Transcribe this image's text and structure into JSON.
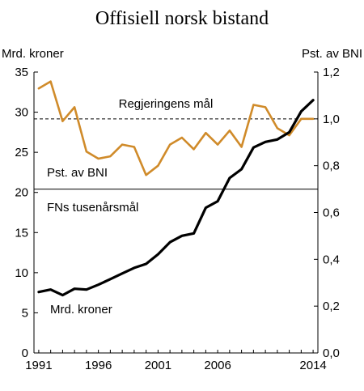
{
  "chart_data": {
    "type": "line",
    "title": "Offisiell norsk bistand",
    "left_axis_unit": "Mrd. kroner",
    "right_axis_unit": "Pst. av BNI",
    "x": [
      1991,
      1992,
      1993,
      1994,
      1995,
      1996,
      1997,
      1998,
      1999,
      2000,
      2001,
      2002,
      2003,
      2004,
      2005,
      2006,
      2007,
      2008,
      2009,
      2010,
      2011,
      2012,
      2013,
      2014
    ],
    "x_ticks": [
      "1991",
      "1996",
      "2001",
      "2006",
      "2014"
    ],
    "x_tick_values": [
      1991,
      1996,
      2001,
      2006,
      2014
    ],
    "xlim": [
      1990.6,
      2014.4
    ],
    "ylim_left": [
      0,
      35
    ],
    "y_ticks_left": [
      "0",
      "5",
      "10",
      "15",
      "20",
      "25",
      "30",
      "35"
    ],
    "y_tick_values_left": [
      0,
      5,
      10,
      15,
      20,
      25,
      30,
      35
    ],
    "ylim_right": [
      0,
      1.2
    ],
    "y_ticks_right": [
      "0,0",
      "0,2",
      "0,4",
      "0,6",
      "0,8",
      "1,0",
      "1,2"
    ],
    "y_tick_values_right": [
      0,
      0.2,
      0.4,
      0.6,
      0.8,
      1.0,
      1.2
    ],
    "series": [
      {
        "name": "Pst. av BNI",
        "axis": "right",
        "color": "#d08b2a",
        "values": [
          1.13,
          1.16,
          0.99,
          1.05,
          0.86,
          0.83,
          0.84,
          0.89,
          0.88,
          0.76,
          0.8,
          0.89,
          0.92,
          0.87,
          0.94,
          0.89,
          0.95,
          0.88,
          1.06,
          1.05,
          0.96,
          0.93,
          1.0,
          1.0
        ]
      },
      {
        "name": "Mrd. kroner",
        "axis": "left",
        "color": "#000000",
        "values": [
          7.6,
          7.9,
          7.2,
          8.0,
          7.9,
          8.5,
          9.2,
          9.9,
          10.6,
          11.1,
          12.3,
          13.8,
          14.6,
          14.9,
          18.1,
          18.9,
          21.8,
          22.9,
          25.6,
          26.3,
          26.6,
          27.5,
          30.1,
          31.5
        ]
      }
    ],
    "reference_lines": [
      {
        "label": "Regjeringens  mål",
        "axis": "right",
        "value": 1.0,
        "style": "dashed"
      },
      {
        "label": "FNs tusenårsmål",
        "axis": "right",
        "value": 0.7,
        "style": "solid"
      }
    ],
    "annotations": {
      "pct_label": "Pst. av BNI",
      "bn_label": "Mrd. kroner"
    }
  }
}
